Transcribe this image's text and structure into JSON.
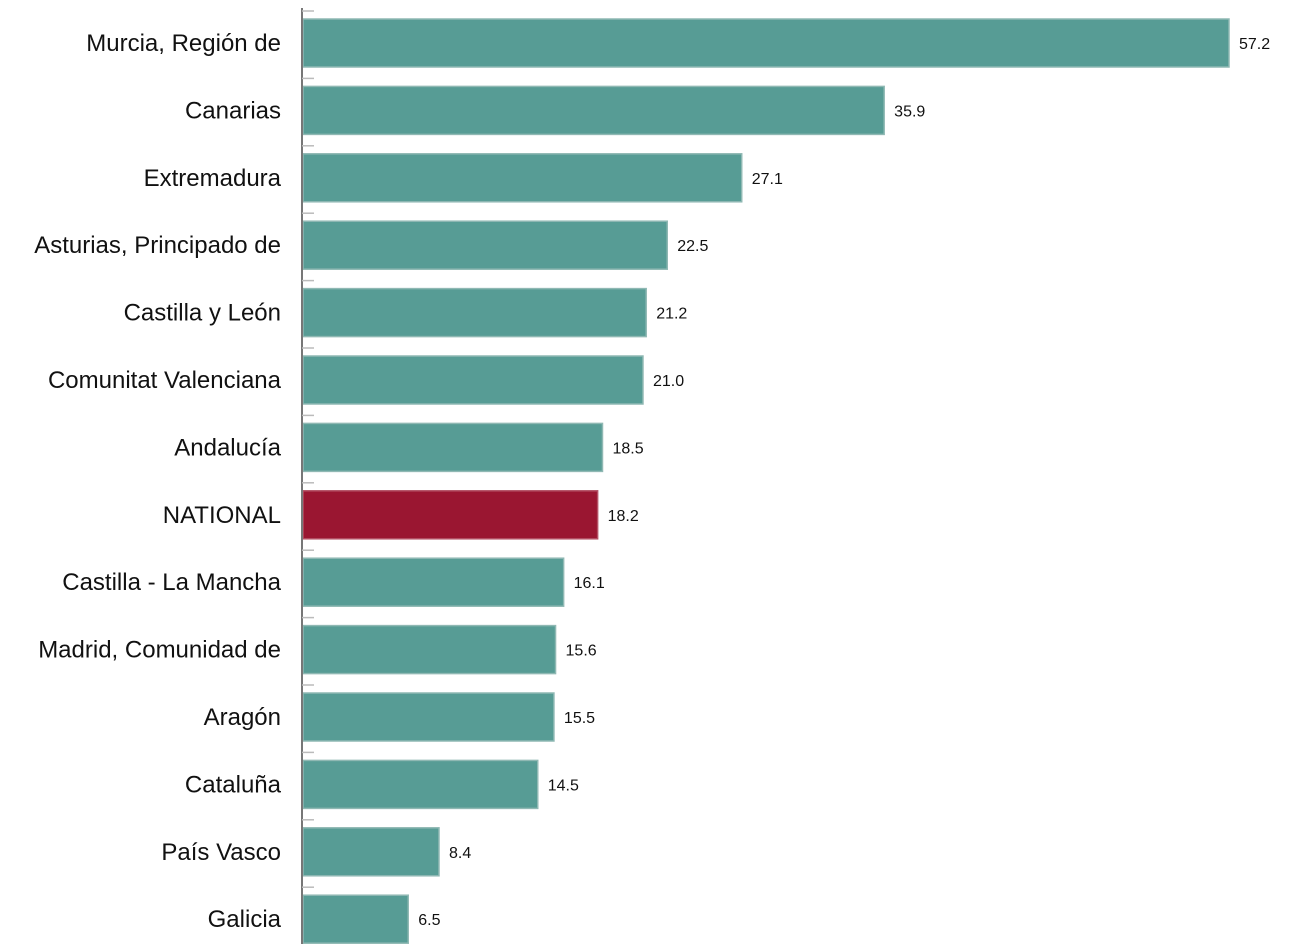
{
  "chart_data": {
    "type": "bar",
    "orientation": "horizontal",
    "categories": [
      "Murcia, Región de",
      "Canarias",
      "Extremadura",
      "Asturias, Principado de",
      "Castilla y León",
      "Comunitat Valenciana",
      "Andalucía",
      "NATIONAL",
      "Castilla - La Mancha",
      "Madrid, Comunidad de",
      "Aragón",
      "Cataluña",
      "País Vasco",
      "Galicia"
    ],
    "values": [
      57.2,
      35.9,
      27.1,
      22.5,
      21.2,
      21.0,
      18.5,
      18.2,
      16.1,
      15.6,
      15.5,
      14.5,
      8.4,
      6.5
    ],
    "value_labels": [
      "57.2",
      "35.9",
      "27.1",
      "22.5",
      "21.2",
      "21.0",
      "18.5",
      "18.2",
      "16.1",
      "15.6",
      "15.5",
      "14.5",
      "8.4",
      "6.5"
    ],
    "highlight_category": "NATIONAL",
    "title": "",
    "xlabel": "",
    "ylabel": "",
    "xlim": [
      0,
      57.2
    ],
    "grid": false,
    "legend": "none",
    "colors": {
      "bar": "#579c95",
      "bar_edge": "#8fb8b3",
      "highlight": "#9a1631",
      "axis": "#777777",
      "text": "#111111"
    }
  }
}
